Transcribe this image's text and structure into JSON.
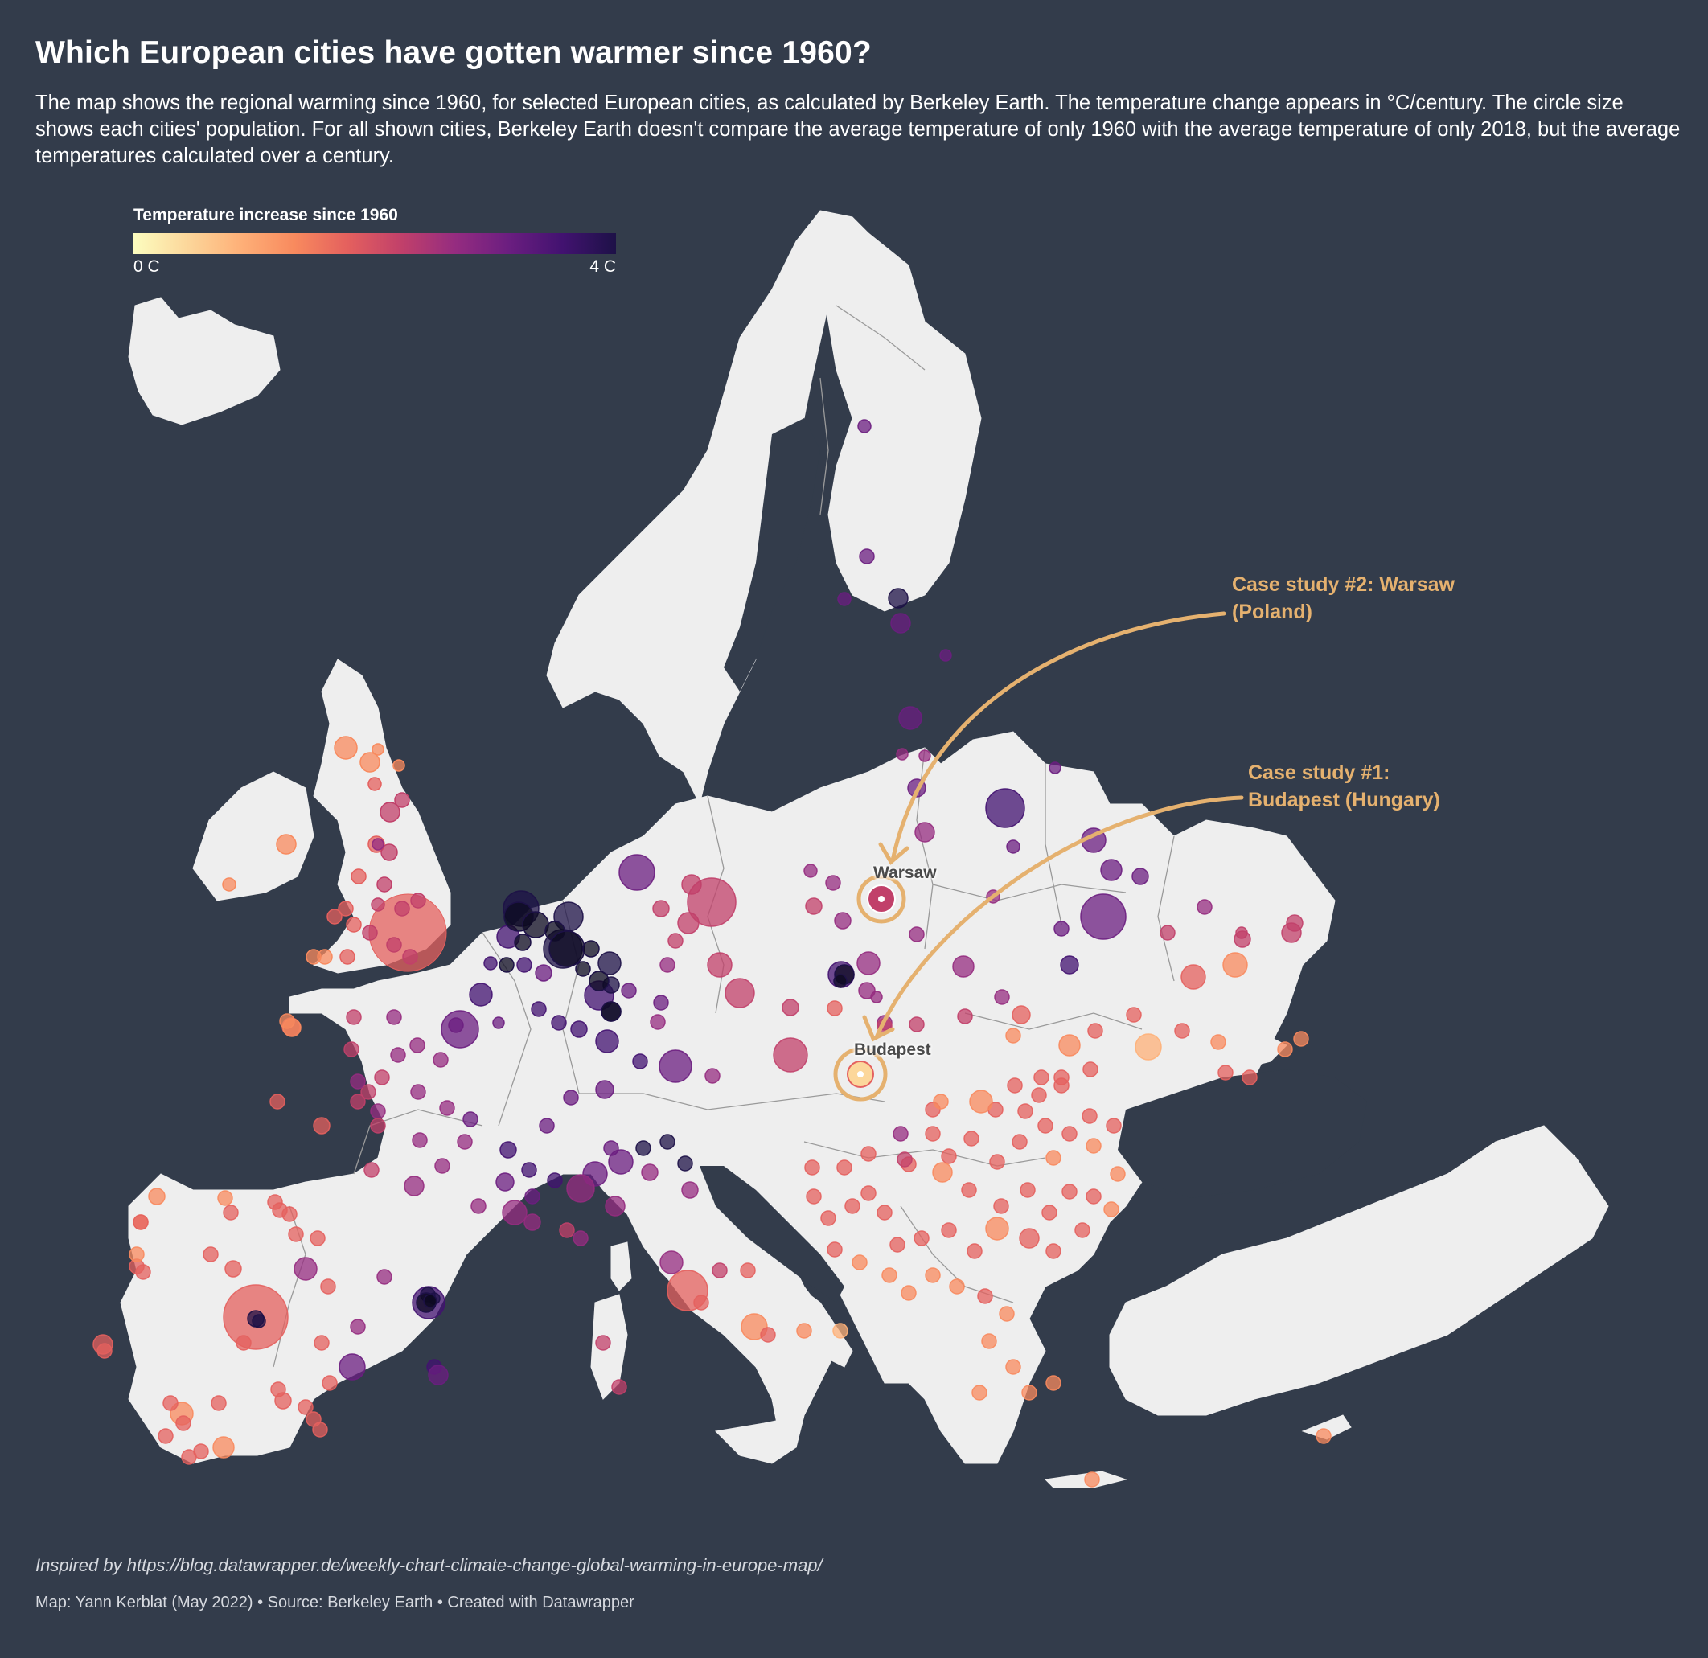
{
  "header": {
    "title": "Which European cities have gotten warmer since 1960?",
    "description": "The map shows the regional warming since 1960, for selected European cities, as calculated by Berkeley Earth. The temperature change appears in °C/century. The circle size shows each cities' population. For all shown cities, Berkeley Earth doesn't compare the average temperature of only 1960 with the average temperature of only 2018, but the average temperatures calculated over a century."
  },
  "legend": {
    "title": "Temperature increase since 1960",
    "min_label": "0 C",
    "max_label": "4 C",
    "scale_min": 0,
    "scale_max": 4,
    "colors": [
      "#fcfdbf",
      "#fcd79b",
      "#feb078",
      "#f88a5e",
      "#e4605e",
      "#c1406a",
      "#952c80",
      "#6b1e80",
      "#421270",
      "#1d1147"
    ]
  },
  "annotations": {
    "case1": "Case study #1: Budapest (Hungary)",
    "case1_line1": "Case study #1:",
    "case1_line2": "Budapest (Hungary)",
    "case2_line1": "Case study #2: Warsaw",
    "case2_line2": "(Poland)",
    "highlight_color": "#e5b16f"
  },
  "cities_labeled": {
    "warsaw": "Warsaw",
    "budapest": "Budapest"
  },
  "footer": {
    "inspired": "Inspired by https://blog.datawrapper.de/weekly-chart-climate-change-global-warming-in-europe-map/",
    "credit": "Map: Yann Kerblat (May 2022) • Source: Berkeley Earth • Created with Datawrapper"
  },
  "colors": {
    "background": "#333c4b",
    "land": "#eeeeee",
    "borders": "#9a9a9a"
  },
  "map_data": {
    "symbol": "circle",
    "size_encodes": "population",
    "color_encodes": "temperature increase since 1960 (C)",
    "highlighted_cities": [
      "Warsaw",
      "Budapest"
    ]
  }
}
